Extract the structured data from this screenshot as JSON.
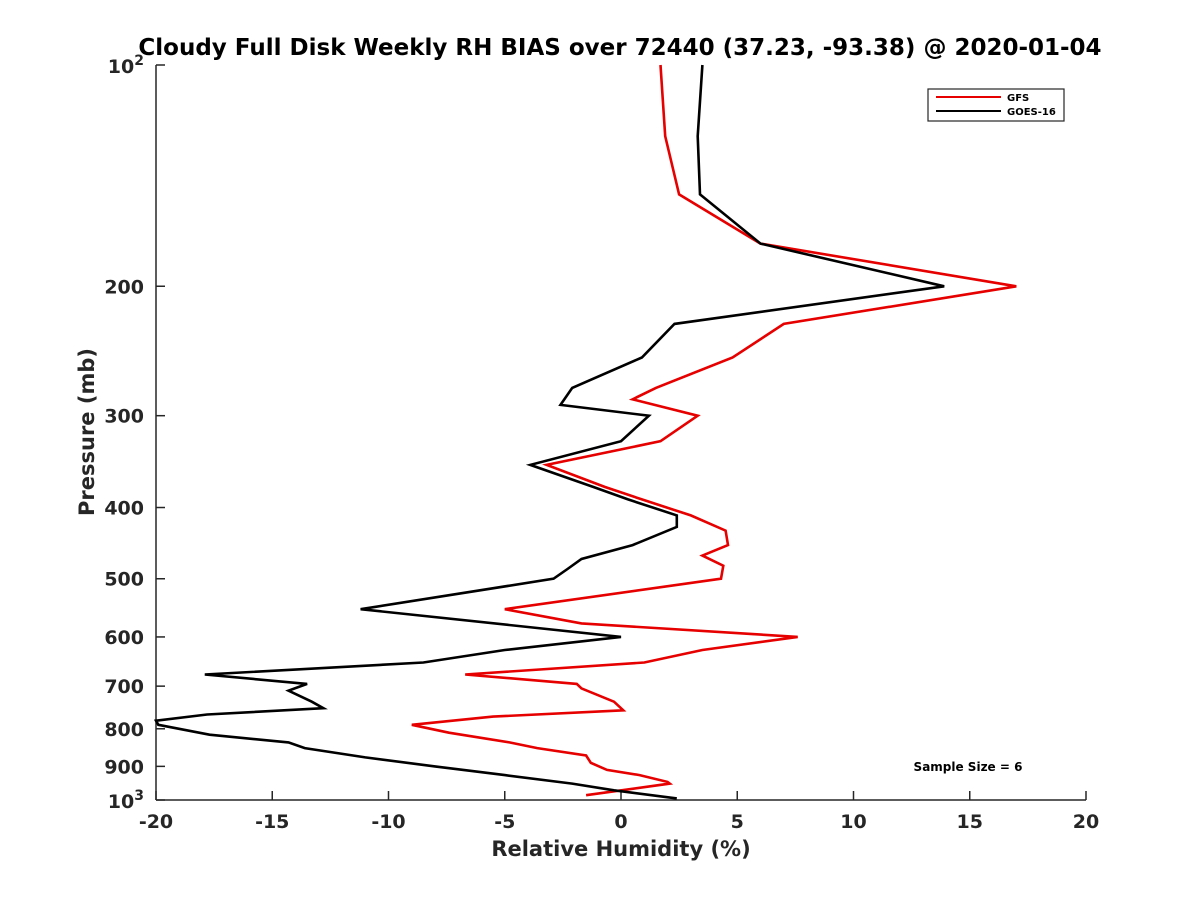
{
  "chart_data": {
    "type": "line",
    "title": "Cloudy Full Disk Weekly RH BIAS over 72440 (37.23, -93.38) @ 2020-01-04",
    "xlabel": "Relative Humidity (%)",
    "ylabel": "Pressure (mb)",
    "xlim": [
      -20,
      20
    ],
    "ylim": [
      100,
      1000
    ],
    "yscale": "log",
    "y_reversed": true,
    "grid": false,
    "legend_position": "top-right",
    "x_ticks": [
      "-20",
      "-15",
      "-10",
      "-5",
      "0",
      "5",
      "10",
      "15",
      "20"
    ],
    "y_ticks": [
      {
        "value": 100,
        "base": "10",
        "exp": "2"
      },
      {
        "value": 200,
        "label": "200"
      },
      {
        "value": 300,
        "label": "300"
      },
      {
        "value": 400,
        "label": "400"
      },
      {
        "value": 500,
        "label": "500"
      },
      {
        "value": 600,
        "label": "600"
      },
      {
        "value": 700,
        "label": "700"
      },
      {
        "value": 800,
        "label": "800"
      },
      {
        "value": 900,
        "label": "900"
      },
      {
        "value": 1000,
        "base": "10",
        "exp": "3"
      }
    ],
    "series": [
      {
        "name": "GFS",
        "color": "#e60000",
        "points": [
          [
            1.7,
            100
          ],
          [
            1.9,
            125
          ],
          [
            2.5,
            150
          ],
          [
            6.0,
            175
          ],
          [
            17.0,
            200
          ],
          [
            7.0,
            225
          ],
          [
            4.8,
            250
          ],
          [
            1.5,
            275
          ],
          [
            0.5,
            285
          ],
          [
            3.3,
            300
          ],
          [
            1.7,
            325
          ],
          [
            -3.2,
            350
          ],
          [
            -0.7,
            375
          ],
          [
            0.9,
            390
          ],
          [
            3.0,
            410
          ],
          [
            4.5,
            430
          ],
          [
            4.6,
            450
          ],
          [
            3.5,
            465
          ],
          [
            4.4,
            480
          ],
          [
            4.3,
            500
          ],
          [
            -5.0,
            550
          ],
          [
            -1.7,
            575
          ],
          [
            7.6,
            600
          ],
          [
            3.5,
            625
          ],
          [
            1.0,
            650
          ],
          [
            -6.7,
            675
          ],
          [
            -1.9,
            695
          ],
          [
            -1.7,
            705
          ],
          [
            -0.3,
            735
          ],
          [
            0.1,
            755
          ],
          [
            -5.5,
            770
          ],
          [
            -9.0,
            790
          ],
          [
            -7.4,
            810
          ],
          [
            -4.8,
            835
          ],
          [
            -3.6,
            850
          ],
          [
            -1.5,
            870
          ],
          [
            -1.3,
            890
          ],
          [
            -0.6,
            910
          ],
          [
            0.8,
            925
          ],
          [
            2.0,
            945
          ],
          [
            2.1,
            950
          ],
          [
            -1.5,
            985
          ]
        ]
      },
      {
        "name": "GOES-16",
        "color": "#000000",
        "points": [
          [
            3.5,
            100
          ],
          [
            3.3,
            125
          ],
          [
            3.4,
            150
          ],
          [
            6.0,
            175
          ],
          [
            13.9,
            200
          ],
          [
            2.3,
            225
          ],
          [
            0.9,
            250
          ],
          [
            -2.1,
            275
          ],
          [
            -2.6,
            290
          ],
          [
            1.2,
            300
          ],
          [
            0.0,
            325
          ],
          [
            -3.9,
            350
          ],
          [
            -1.2,
            375
          ],
          [
            0.3,
            390
          ],
          [
            2.4,
            410
          ],
          [
            2.4,
            425
          ],
          [
            0.5,
            450
          ],
          [
            -1.7,
            470
          ],
          [
            -2.3,
            485
          ],
          [
            -2.9,
            500
          ],
          [
            -11.2,
            550
          ],
          [
            0.0,
            600
          ],
          [
            -5.0,
            625
          ],
          [
            -8.5,
            650
          ],
          [
            -17.9,
            675
          ],
          [
            -13.5,
            695
          ],
          [
            -14.3,
            710
          ],
          [
            -13.3,
            735
          ],
          [
            -12.8,
            750
          ],
          [
            -17.8,
            765
          ],
          [
            -20.0,
            780
          ],
          [
            -19.9,
            790
          ],
          [
            -17.7,
            815
          ],
          [
            -14.3,
            835
          ],
          [
            -13.6,
            850
          ],
          [
            -11.0,
            875
          ],
          [
            -8.0,
            900
          ],
          [
            -5.0,
            925
          ],
          [
            -2.1,
            950
          ],
          [
            -0.3,
            970
          ],
          [
            2.4,
            995
          ]
        ]
      }
    ],
    "annotation": "Sample Size = 6"
  }
}
